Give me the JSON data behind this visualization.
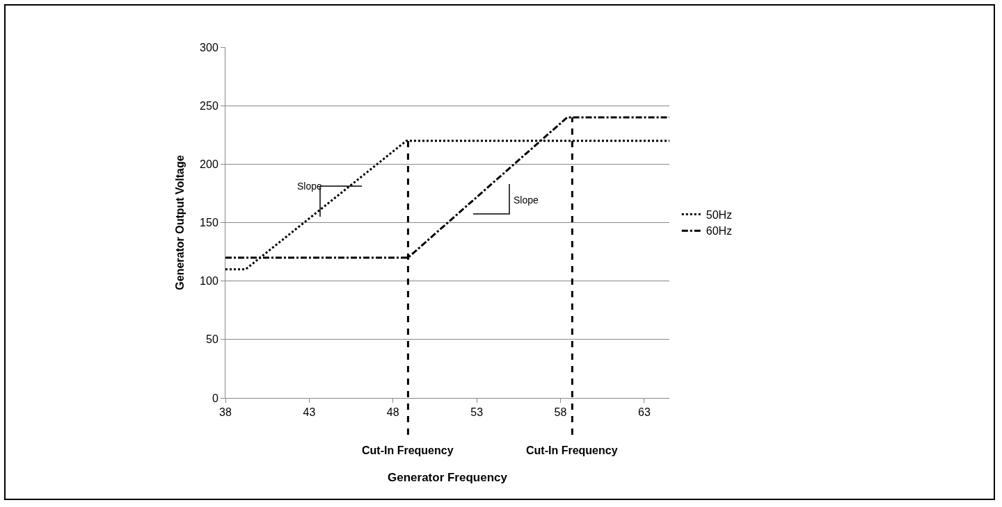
{
  "chart_data": {
    "type": "line",
    "xlabel": "Generator Frequency",
    "ylabel": "Generator Output Voltage",
    "series": [
      {
        "name": "50Hz",
        "color": "#000000",
        "line_style": "dotted",
        "x": [
          38,
          39.2,
          48.8,
          64.5
        ],
        "values": [
          110,
          110,
          220,
          220
        ]
      },
      {
        "name": "60Hz",
        "color": "#000000",
        "line_style": "dashdot",
        "x": [
          38,
          48.9,
          58.4,
          64.5
        ],
        "values": [
          120,
          120,
          240,
          240
        ]
      }
    ],
    "xlim": [
      38,
      64.5
    ],
    "xticks": [
      38,
      43,
      48,
      53,
      58,
      63
    ],
    "ylim": [
      0,
      300
    ],
    "yticks": [
      0,
      50,
      100,
      150,
      200,
      250,
      300
    ],
    "grid": "y",
    "legend": "right",
    "marker": "none",
    "ref_lines": [
      {
        "axis": "x",
        "value": 48.9,
        "label": "Cut-In Frequency",
        "line_style": "dashed",
        "color": "#000000"
      },
      {
        "axis": "x",
        "value": 58.7,
        "label": "Cut-In Frequency",
        "line_style": "dashed",
        "color": "#000000"
      }
    ],
    "annotations": [
      "Slope",
      "Slope"
    ]
  }
}
